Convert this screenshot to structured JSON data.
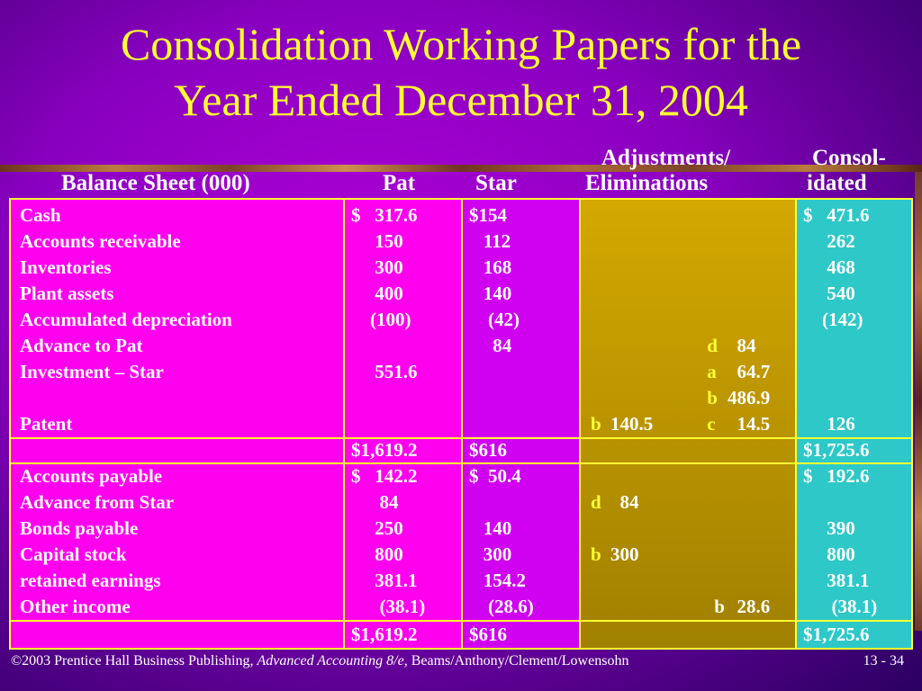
{
  "title": {
    "line1": "Consolidation Working Papers for the",
    "line2": "Year Ended December 31, 2004"
  },
  "headers": {
    "balance_sheet": "Balance Sheet (000)",
    "pat": "Pat",
    "star": "Star",
    "adj_line1": "Adjustments/",
    "adj_line2": "Eliminations",
    "consol_line1": "Consol-",
    "consol_line2": "idated"
  },
  "assets": {
    "labels": "Cash\nAccounts receivable\nInventories\nPlant assets\nAccumulated depreciation\nAdvance to Pat\nInvestment – Star\n\nPatent",
    "pat": "$   317.6\n     150\n     300\n     400\n    (100)\n\n     551.6\n\n",
    "star": "$154\n   112\n   168\n   140\n    (42)\n     84\n\n\n",
    "debit_letters": "\n\n\n\n\n\n\n\nb",
    "debit_values": "\n\n\n\n\n\n\n\n140.5",
    "credit_letters": "\n\n\n\n\n d\n a\n b\n c",
    "credit_values": "\n\n\n\n\n  84\n  64.7\n486.9\n  14.5",
    "consolidated": "$   471.6\n     262\n     468\n     540\n    (142)\n\n\n\n     126"
  },
  "asset_totals": {
    "pat": "$1,619.2",
    "star": "$616",
    "consolidated": "$1,725.6"
  },
  "liabilities": {
    "labels": "Accounts payable\nAdvance from Star\nBonds payable\nCapital stock\nretained earnings\nOther income",
    "pat": "$   142.2\n      84\n     250\n     800\n     381.1\n      (38.1)",
    "star": "$  50.4\n\n   140\n   300\n   154.2\n    (28.6)",
    "debit_letters": "\nd\n\nb\n\n",
    "debit_values": "\n  84\n\n300\n\n",
    "credit_letters": "\n\n\n\n\n b",
    "credit_values": "\n\n\n\n\n  28.6",
    "consolidated": "$   192.6\n\n     390\n     800\n     381.1\n      (38.1)"
  },
  "liability_totals": {
    "pat": "$1,619.2",
    "star": "$616",
    "consolidated": "$1,725.6"
  },
  "footer": {
    "publisher": "©2003 Prentice Hall Business Publishing, ",
    "book": "Advanced Accounting 8/e,",
    "authors": " Beams/Anthony/Clement/Lowensohn",
    "page": "13 - 34"
  }
}
